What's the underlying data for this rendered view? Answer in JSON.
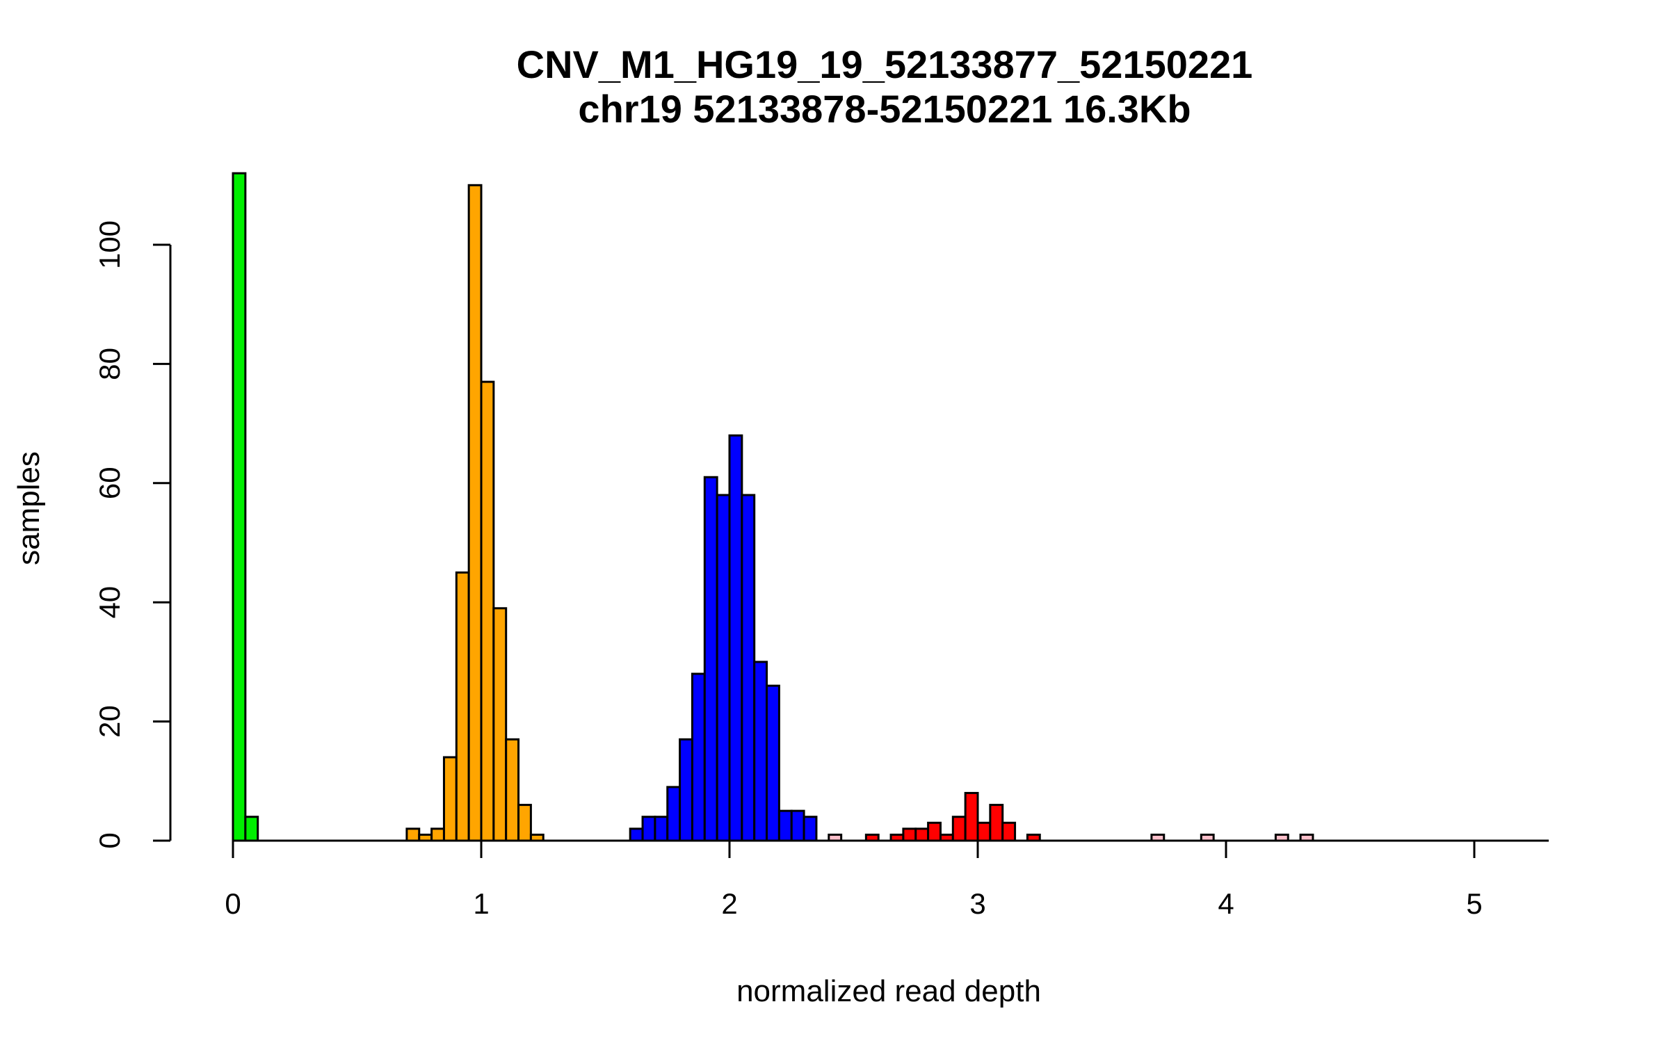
{
  "chart_data": {
    "type": "bar",
    "title": "CNV_M1_HG19_19_52133877_52150221",
    "subtitle": "chr19 52133878-52150221 16.3Kb",
    "xlabel": "normalized read depth",
    "ylabel": "samples",
    "xlim": [
      -0.25,
      5.3
    ],
    "ylim": [
      0,
      112
    ],
    "bin_width": 0.05,
    "x_ticks": [
      0,
      1,
      2,
      3,
      4,
      5
    ],
    "y_ticks": [
      0,
      20,
      40,
      60,
      80,
      100
    ],
    "grid": false,
    "legend": "none",
    "series": [
      {
        "color": "#00ee00",
        "bins": [
          {
            "x": 0.0,
            "count": 112
          },
          {
            "x": 0.05,
            "count": 4
          }
        ]
      },
      {
        "color": "#ffa500",
        "bins": [
          {
            "x": 0.7,
            "count": 2
          },
          {
            "x": 0.75,
            "count": 1
          },
          {
            "x": 0.8,
            "count": 2
          },
          {
            "x": 0.85,
            "count": 14
          },
          {
            "x": 0.9,
            "count": 45
          },
          {
            "x": 0.95,
            "count": 110
          },
          {
            "x": 1.0,
            "count": 77
          },
          {
            "x": 1.05,
            "count": 39
          },
          {
            "x": 1.1,
            "count": 17
          },
          {
            "x": 1.15,
            "count": 6
          },
          {
            "x": 1.2,
            "count": 1
          }
        ]
      },
      {
        "color": "#0000ff",
        "bins": [
          {
            "x": 1.6,
            "count": 2
          },
          {
            "x": 1.65,
            "count": 4
          },
          {
            "x": 1.7,
            "count": 4
          },
          {
            "x": 1.75,
            "count": 9
          },
          {
            "x": 1.8,
            "count": 17
          },
          {
            "x": 1.85,
            "count": 28
          },
          {
            "x": 1.9,
            "count": 61
          },
          {
            "x": 1.95,
            "count": 58
          },
          {
            "x": 2.0,
            "count": 68
          },
          {
            "x": 2.05,
            "count": 58
          },
          {
            "x": 2.1,
            "count": 30
          },
          {
            "x": 2.15,
            "count": 26
          },
          {
            "x": 2.2,
            "count": 5
          },
          {
            "x": 2.25,
            "count": 5
          },
          {
            "x": 2.3,
            "count": 4
          }
        ]
      },
      {
        "color": "#ffc0cb",
        "bins": [
          {
            "x": 2.4,
            "count": 1
          },
          {
            "x": 3.7,
            "count": 1
          },
          {
            "x": 3.9,
            "count": 1
          },
          {
            "x": 4.2,
            "count": 1
          },
          {
            "x": 4.3,
            "count": 1
          }
        ]
      },
      {
        "color": "#ff0000",
        "bins": [
          {
            "x": 2.55,
            "count": 1
          },
          {
            "x": 2.65,
            "count": 1
          },
          {
            "x": 2.7,
            "count": 2
          },
          {
            "x": 2.75,
            "count": 2
          },
          {
            "x": 2.8,
            "count": 3
          },
          {
            "x": 2.85,
            "count": 1
          },
          {
            "x": 2.9,
            "count": 4
          },
          {
            "x": 2.95,
            "count": 8
          },
          {
            "x": 3.0,
            "count": 3
          },
          {
            "x": 3.05,
            "count": 6
          },
          {
            "x": 3.1,
            "count": 3
          },
          {
            "x": 3.2,
            "count": 1
          }
        ]
      }
    ]
  }
}
